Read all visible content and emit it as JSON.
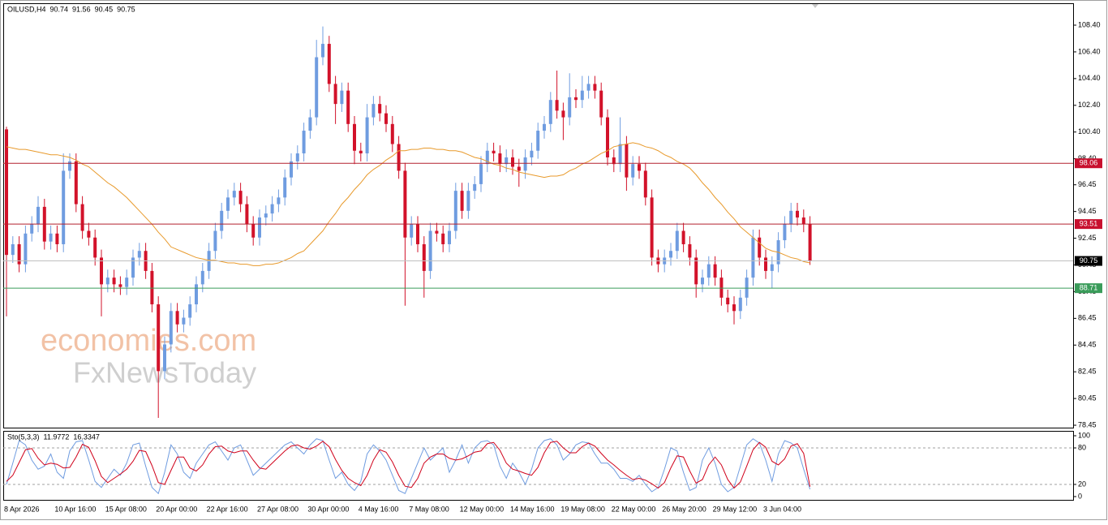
{
  "chart_data": [
    {
      "type": "candlestick",
      "symbol": "OILUSD,H4",
      "ohlc": [
        90.74,
        91.56,
        90.45,
        90.75
      ],
      "up_color": "#6f9ce0",
      "down_color": "#d2122a",
      "categories": [
        "8 Apr 2026",
        null,
        null,
        null,
        null,
        null,
        null,
        null,
        "10 Apr 16:00",
        null,
        null,
        null,
        null,
        null,
        null,
        null,
        "15 Apr 08:00",
        null,
        null,
        null,
        null,
        null,
        null,
        null,
        "20 Apr 00:00",
        null,
        null,
        null,
        null,
        null,
        null,
        null,
        "22 Apr 16:00",
        null,
        null,
        null,
        null,
        null,
        null,
        null,
        "27 Apr 08:00",
        null,
        null,
        null,
        null,
        null,
        null,
        null,
        "30 Apr 00:00",
        null,
        null,
        null,
        null,
        null,
        null,
        null,
        "4 May 16:00",
        null,
        null,
        null,
        null,
        null,
        null,
        null,
        "7 May 08:00",
        null,
        null,
        null,
        null,
        null,
        null,
        null,
        "12 May 00:00",
        null,
        null,
        null,
        null,
        null,
        null,
        null,
        "14 May 16:00",
        null,
        null,
        null,
        null,
        null,
        null,
        null,
        "19 May 08:00",
        null,
        null,
        null,
        null,
        null,
        null,
        null,
        "22 May 00:00",
        null,
        null,
        null,
        null,
        null,
        null,
        null,
        "26 May 20:00",
        null,
        null,
        null,
        null,
        null,
        null,
        null,
        "29 May 12:00",
        null,
        null,
        null,
        null,
        null,
        null,
        null,
        "3 Jun 04:00",
        null,
        null,
        null,
        null,
        null,
        null,
        null
      ],
      "open": [
        100.6,
        91.2,
        92.0,
        90.5,
        92.8,
        93.5,
        94.8,
        92.2,
        92.8,
        92.0,
        97.5,
        98.2,
        95.0,
        93.0,
        92.5,
        91.0,
        89.0,
        89.5,
        89.0,
        88.8,
        89.5,
        91.0,
        91.5,
        90.0,
        87.5,
        82.5,
        84.5,
        87.0,
        86.0,
        86.5,
        87.5,
        89.0,
        90.0,
        91.5,
        93.0,
        94.5,
        95.5,
        96.0,
        95.0,
        93.5,
        92.5,
        94.0,
        94.3,
        95.0,
        95.5,
        97.0,
        98.2,
        98.8,
        100.5,
        101.5,
        106.0,
        107.0,
        104.0,
        102.5,
        103.5,
        101.0,
        99.0,
        98.8,
        101.5,
        102.5,
        101.8,
        101.0,
        99.5,
        97.5,
        92.5,
        93.5,
        92.0,
        90.0,
        93.0,
        92.8,
        92.0,
        93.0,
        96.0,
        94.5,
        96.0,
        96.5,
        98.0,
        99.0,
        98.8,
        98.0,
        98.5,
        97.8,
        97.5,
        98.5,
        99.0,
        100.5,
        101.0,
        102.8,
        102.0,
        101.5,
        103.0,
        102.8,
        103.5,
        104.0,
        103.5,
        101.5,
        98.5,
        98.0,
        99.5,
        97.0,
        98.0,
        97.5,
        95.5,
        91.0,
        90.5,
        91.0,
        91.5,
        93.0,
        92.0,
        91.0,
        89.0,
        89.5,
        90.5,
        89.5,
        88.0,
        87.5,
        87.0,
        88.0,
        89.5,
        92.5,
        91.0,
        90.0,
        90.5,
        92.3,
        93.5,
        94.5,
        94.0,
        93.5
      ],
      "high": [
        100.8,
        92.6,
        92.6,
        93.4,
        94.1,
        95.6,
        95.4,
        93.4,
        93.4,
        98.8,
        98.8,
        98.8,
        95.6,
        93.6,
        93.1,
        91.6,
        90.1,
        90.1,
        89.6,
        90.1,
        91.6,
        92.1,
        92.1,
        90.6,
        88.1,
        85.1,
        87.6,
        87.6,
        87.1,
        88.1,
        89.6,
        90.6,
        92.1,
        93.6,
        95.1,
        96.1,
        96.6,
        96.6,
        95.6,
        94.1,
        94.6,
        94.9,
        95.6,
        96.1,
        97.6,
        98.8,
        99.4,
        101.1,
        102.1,
        107.3,
        108.3,
        107.6,
        104.6,
        104.1,
        104.1,
        101.6,
        99.6,
        102.5,
        103.1,
        103.1,
        102.4,
        101.6,
        100.1,
        98.1,
        94.1,
        94.1,
        92.6,
        93.6,
        93.6,
        93.4,
        93.6,
        96.6,
        96.6,
        96.6,
        97.1,
        98.6,
        99.6,
        99.6,
        99.4,
        99.1,
        99.1,
        98.4,
        99.1,
        99.6,
        101.1,
        101.6,
        103.4,
        105.0,
        102.6,
        104.8,
        103.6,
        104.6,
        104.6,
        104.6,
        104.1,
        102.1,
        99.1,
        101.5,
        100.1,
        98.6,
        98.6,
        98.1,
        96.1,
        91.6,
        91.6,
        92.1,
        93.6,
        93.6,
        92.6,
        91.6,
        90.1,
        91.1,
        91.1,
        90.1,
        88.6,
        88.1,
        88.6,
        90.1,
        93.1,
        93.1,
        91.6,
        91.1,
        92.9,
        94.1,
        95.1,
        95.1,
        94.6,
        94.1
      ],
      "low": [
        86.6,
        90.6,
        89.9,
        89.9,
        92.2,
        92.9,
        91.6,
        91.6,
        91.4,
        91.4,
        96.9,
        94.4,
        92.4,
        91.9,
        90.4,
        86.6,
        88.4,
        88.4,
        88.2,
        88.2,
        88.9,
        90.4,
        89.4,
        86.9,
        79.0,
        81.9,
        83.9,
        85.4,
        85.4,
        85.9,
        86.9,
        88.4,
        89.4,
        90.9,
        92.4,
        93.9,
        94.9,
        94.4,
        92.9,
        91.9,
        91.9,
        93.4,
        93.7,
        94.4,
        94.9,
        96.4,
        97.6,
        98.2,
        99.9,
        100.9,
        105.4,
        103.4,
        101.0,
        101.9,
        100.4,
        98.0,
        98.2,
        98.2,
        100.9,
        101.2,
        100.4,
        98.9,
        96.9,
        87.4,
        91.9,
        91.4,
        88.0,
        89.4,
        92.2,
        91.4,
        91.4,
        92.4,
        93.9,
        93.9,
        95.4,
        95.9,
        97.4,
        98.2,
        97.4,
        97.4,
        97.2,
        96.3,
        96.9,
        97.9,
        98.4,
        99.9,
        100.4,
        101.4,
        99.8,
        100.9,
        102.2,
        102.2,
        102.9,
        102.9,
        100.9,
        97.9,
        97.4,
        97.4,
        96.0,
        96.4,
        96.9,
        94.9,
        90.4,
        89.9,
        89.9,
        90.4,
        90.9,
        91.4,
        90.4,
        88.0,
        88.4,
        88.9,
        88.9,
        87.4,
        86.9,
        86.0,
        86.4,
        87.4,
        88.9,
        90.4,
        89.4,
        88.7,
        89.9,
        91.7,
        92.9,
        93.4,
        92.9,
        90.45
      ],
      "close": [
        91.2,
        92.0,
        90.5,
        92.8,
        93.5,
        94.8,
        92.2,
        92.8,
        92.0,
        97.5,
        98.2,
        95.0,
        93.0,
        92.5,
        91.0,
        89.0,
        89.5,
        89.0,
        88.8,
        89.5,
        91.0,
        91.5,
        90.0,
        87.5,
        82.5,
        84.5,
        87.0,
        86.0,
        86.5,
        87.5,
        89.0,
        90.0,
        91.5,
        93.0,
        94.5,
        95.5,
        96.0,
        95.0,
        93.5,
        92.5,
        94.0,
        94.3,
        95.0,
        95.5,
        97.0,
        98.2,
        98.8,
        100.5,
        101.5,
        106.0,
        107.0,
        104.0,
        102.5,
        103.5,
        101.0,
        99.0,
        98.8,
        101.5,
        102.5,
        101.8,
        101.0,
        99.5,
        97.5,
        92.5,
        93.5,
        92.0,
        90.0,
        93.0,
        92.8,
        92.0,
        93.0,
        96.0,
        94.5,
        96.0,
        96.5,
        98.0,
        99.0,
        98.8,
        98.0,
        98.5,
        97.8,
        97.5,
        98.5,
        99.0,
        100.5,
        101.0,
        102.8,
        102.0,
        101.5,
        103.0,
        102.8,
        103.5,
        104.0,
        103.5,
        101.5,
        98.5,
        98.0,
        99.5,
        97.0,
        98.0,
        97.5,
        95.5,
        91.0,
        90.5,
        91.0,
        91.5,
        93.0,
        92.0,
        91.0,
        89.0,
        89.5,
        90.5,
        89.5,
        88.0,
        87.5,
        87.0,
        88.0,
        89.5,
        92.5,
        91.0,
        90.0,
        90.5,
        92.3,
        93.5,
        94.5,
        94.0,
        93.5,
        90.75
      ],
      "overlays": [
        {
          "color": "#e89a2c",
          "values": [
            99.3,
            99.2,
            99.1,
            99.1,
            99.0,
            98.9,
            98.8,
            98.7,
            98.7,
            98.6,
            98.5,
            98.3,
            98.0,
            97.8,
            97.4,
            97.0,
            96.6,
            96.3,
            95.9,
            95.5,
            95.0,
            94.5,
            94.0,
            93.5,
            92.9,
            92.4,
            91.8,
            91.6,
            91.4,
            91.2,
            91.0,
            90.9,
            90.8,
            90.8,
            90.7,
            90.6,
            90.6,
            90.5,
            90.5,
            90.4,
            90.4,
            90.5,
            90.5,
            90.6,
            90.8,
            91.0,
            91.3,
            91.5,
            92.0,
            92.5,
            93.0,
            93.7,
            94.3,
            95.0,
            95.5,
            96.1,
            96.6,
            97.2,
            97.6,
            97.9,
            98.3,
            98.6,
            99.0,
            99.0,
            99.1,
            99.1,
            99.2,
            99.2,
            99.1,
            99.1,
            99.0,
            99.0,
            98.9,
            98.7,
            98.5,
            98.4,
            98.2,
            98.0,
            97.9,
            97.7,
            97.6,
            97.4,
            97.3,
            97.2,
            97.1,
            97.0,
            97.1,
            97.1,
            97.2,
            97.5,
            97.7,
            98.0,
            98.2,
            98.5,
            98.8,
            99.0,
            99.3,
            99.4,
            99.5,
            99.6,
            99.5,
            99.3,
            99.2,
            99.0,
            98.7,
            98.5,
            98.2,
            98.0,
            97.7,
            97.2,
            96.6,
            96.1,
            95.5,
            95.0,
            94.4,
            93.9,
            93.3,
            92.9,
            92.5,
            92.1,
            91.7,
            91.5,
            91.4,
            91.2,
            91.0,
            90.9,
            90.7,
            90.6
          ]
        }
      ],
      "levels": [
        {
          "value": 98.06,
          "color": "#b3202e",
          "label_color": "#c8102e"
        },
        {
          "value": 93.51,
          "color": "#b3202e",
          "label_color": "#c8102e"
        },
        {
          "value": 90.75,
          "color": "#c0c0c0",
          "label_color": "#000000"
        },
        {
          "value": 88.71,
          "color": "#3a9c5a",
          "label_color": "#3a9c5a"
        }
      ],
      "ylim": [
        78.27,
        109.98
      ],
      "yticks": [
        {
          "value": 108.4,
          "label": "108.40"
        },
        {
          "value": 106.4,
          "label": "106.40"
        },
        {
          "value": 104.4,
          "label": "104.40"
        },
        {
          "value": 102.4,
          "label": "102.40"
        },
        {
          "value": 100.4,
          "label": "100.40"
        },
        {
          "value": 98.4,
          "label": "98.40"
        },
        96.45,
        94.45,
        92.45,
        90.45,
        88.45,
        86.45,
        84.45,
        82.45,
        80.45,
        78.45
      ]
    },
    {
      "type": "line",
      "title": "Sto(5,3,3)",
      "header_values": [
        11.9772,
        16.3347
      ],
      "series": [
        {
          "color": "#6f9ce0",
          "values": [
            20,
            55,
            92,
            85,
            60,
            45,
            50,
            70,
            40,
            30,
            75,
            90,
            92,
            60,
            25,
            15,
            30,
            45,
            35,
            55,
            85,
            88,
            50,
            15,
            5,
            40,
            85,
            70,
            40,
            30,
            55,
            70,
            85,
            90,
            75,
            60,
            80,
            85,
            60,
            35,
            45,
            55,
            65,
            75,
            85,
            90,
            80,
            70,
            85,
            95,
            92,
            60,
            30,
            40,
            20,
            10,
            25,
            70,
            85,
            75,
            60,
            35,
            10,
            5,
            30,
            55,
            80,
            60,
            70,
            80,
            40,
            60,
            85,
            55,
            80,
            90,
            92,
            85,
            50,
            30,
            55,
            40,
            20,
            45,
            80,
            92,
            95,
            85,
            60,
            70,
            85,
            90,
            88,
            70,
            55,
            55,
            45,
            30,
            30,
            25,
            35,
            20,
            8,
            15,
            45,
            80,
            75,
            40,
            10,
            15,
            60,
            80,
            55,
            20,
            8,
            15,
            50,
            85,
            95,
            88,
            60,
            25,
            70,
            92,
            88,
            80,
            45,
            11.9772
          ]
        },
        {
          "color": "#d0021b",
          "values": [
            25,
            35,
            56,
            77,
            79,
            63,
            52,
            55,
            53,
            47,
            48,
            65,
            86,
            81,
            59,
            33,
            23,
            30,
            37,
            45,
            58,
            76,
            74,
            51,
            23,
            20,
            43,
            65,
            65,
            47,
            42,
            52,
            70,
            82,
            83,
            75,
            72,
            75,
            75,
            60,
            47,
            45,
            55,
            65,
            75,
            83,
            85,
            80,
            78,
            83,
            91,
            82,
            61,
            43,
            30,
            23,
            18,
            35,
            60,
            77,
            73,
            57,
            35,
            17,
            15,
            30,
            55,
            65,
            70,
            70,
            63,
            60,
            62,
            67,
            73,
            75,
            87,
            89,
            76,
            55,
            45,
            42,
            38,
            35,
            48,
            72,
            89,
            91,
            80,
            72,
            72,
            82,
            88,
            83,
            71,
            60,
            52,
            43,
            35,
            28,
            30,
            27,
            21,
            14,
            23,
            47,
            67,
            65,
            42,
            22,
            28,
            52,
            65,
            52,
            28,
            14,
            24,
            50,
            77,
            89,
            81,
            58,
            52,
            62,
            83,
            87,
            71,
            16.3347
          ]
        }
      ],
      "levels": [
        80,
        20
      ],
      "ylim": [
        -6.7,
        108
      ],
      "yticks": [
        100,
        80,
        20,
        0
      ]
    }
  ],
  "watermark": {
    "brand": "economies.com",
    "partner": "FxNewsToday"
  }
}
